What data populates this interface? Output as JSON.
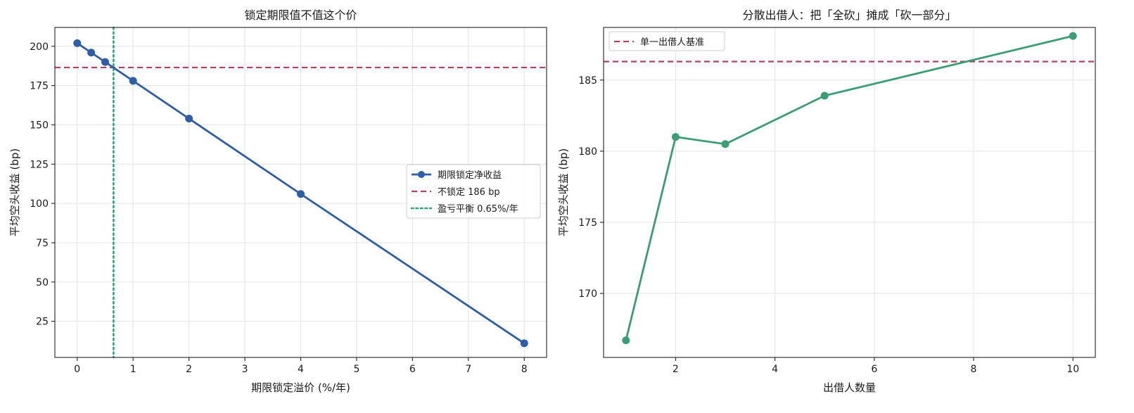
{
  "chart_data": [
    {
      "type": "line",
      "title": "锁定期限值不值这个价",
      "xlabel": "期限锁定溢价 (%/年)",
      "ylabel": "平均空头收益 (bp)",
      "xlim": [
        -0.4,
        8.4
      ],
      "ylim": [
        2,
        212
      ],
      "xticks": [
        0,
        1,
        2,
        3,
        4,
        5,
        6,
        7,
        8
      ],
      "yticks": [
        25,
        50,
        75,
        100,
        125,
        150,
        175,
        200
      ],
      "grid": true,
      "legend_position": "center-right",
      "series": [
        {
          "name": "期限锁定净收益",
          "kind": "line-marker",
          "color": "#2f5ea8",
          "x": [
            0,
            0.25,
            0.5,
            1,
            2,
            4,
            8
          ],
          "y": [
            202,
            196,
            190,
            178,
            154,
            106,
            11
          ]
        }
      ],
      "hlines": [
        {
          "name": "不锁定 186 bp",
          "y": 186.5,
          "color": "#b8405e",
          "style": "dashed"
        }
      ],
      "vlines": [
        {
          "name": "盈亏平衡 0.65%/年",
          "x": 0.65,
          "color": "#2ea37a",
          "style": "dotted"
        }
      ]
    },
    {
      "type": "line",
      "title": "分散出借人：把「全砍」摊成「砍一部分」",
      "xlabel": "出借人数量",
      "ylabel": "平均空头收益 (bp)",
      "xlim": [
        0.55,
        10.45
      ],
      "ylim": [
        165.5,
        188.7
      ],
      "xticks": [
        2,
        4,
        6,
        8,
        10
      ],
      "yticks": [
        170,
        175,
        180,
        185
      ],
      "grid": true,
      "legend_position": "top-left",
      "series": [
        {
          "name": "",
          "kind": "line-marker",
          "color": "#3a9e74",
          "x": [
            1,
            2,
            3,
            5,
            10
          ],
          "y": [
            166.7,
            181.0,
            180.5,
            183.9,
            188.1
          ]
        }
      ],
      "hlines": [
        {
          "name": "单一出借人基准",
          "y": 186.3,
          "color": "#b8405e",
          "style": "dashed"
        }
      ],
      "vlines": []
    }
  ]
}
